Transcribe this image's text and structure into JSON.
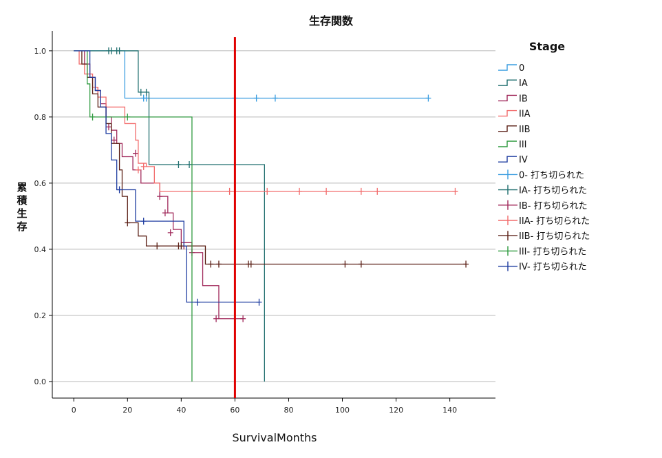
{
  "chart_data": {
    "type": "line",
    "title": "生存関数",
    "xlabel": "SurvivalMonths",
    "ylabel": "累積生存",
    "xlim": [
      -8,
      157
    ],
    "ylim": [
      -0.05,
      1.06
    ],
    "xticks": [
      0,
      20,
      40,
      60,
      80,
      100,
      120,
      140
    ],
    "yticks": [
      0.0,
      0.2,
      0.4,
      0.6,
      0.8,
      1.0
    ],
    "ytick_labels": [
      "0.0",
      "0.2",
      "0.4",
      "0.6",
      "0.8",
      "1.0"
    ],
    "grid": "horizontal",
    "legend_title": "Stage",
    "legend_position": "right",
    "reference_line": {
      "x": 60,
      "color": "#e00000"
    },
    "series": [
      {
        "name": "0",
        "censored_name": "0- 打ち切られた",
        "color": "#3a9de0",
        "steps": [
          [
            0,
            1.0
          ],
          [
            19,
            0.857
          ],
          [
            132,
            0.857
          ]
        ],
        "censored": [
          [
            26,
            0.857
          ],
          [
            27,
            0.857
          ],
          [
            60,
            0.857
          ],
          [
            68,
            0.857
          ],
          [
            75,
            0.857
          ],
          [
            132,
            0.857
          ]
        ]
      },
      {
        "name": "IA",
        "censored_name": "IA- 打ち切られた",
        "color": "#1e6e6e",
        "steps": [
          [
            0,
            1.0
          ],
          [
            24,
            0.875
          ],
          [
            28,
            0.656
          ],
          [
            71,
            0.656
          ],
          [
            71,
            0.0
          ]
        ],
        "censored": [
          [
            13,
            1.0
          ],
          [
            14,
            1.0
          ],
          [
            16,
            1.0
          ],
          [
            17,
            1.0
          ],
          [
            25,
            0.875
          ],
          [
            27,
            0.875
          ],
          [
            39,
            0.656
          ],
          [
            43,
            0.656
          ]
        ]
      },
      {
        "name": "IB",
        "censored_name": "IB- 打ち切られた",
        "color": "#a0285a",
        "steps": [
          [
            0,
            1.0
          ],
          [
            4,
            0.96
          ],
          [
            6,
            0.92
          ],
          [
            8,
            0.88
          ],
          [
            10,
            0.84
          ],
          [
            12,
            0.8
          ],
          [
            14,
            0.76
          ],
          [
            16,
            0.72
          ],
          [
            18,
            0.68
          ],
          [
            22,
            0.64
          ],
          [
            25,
            0.6
          ],
          [
            32,
            0.56
          ],
          [
            35,
            0.51
          ],
          [
            37,
            0.46
          ],
          [
            40,
            0.42
          ],
          [
            44,
            0.39
          ],
          [
            48,
            0.29
          ],
          [
            54,
            0.19
          ],
          [
            63,
            0.19
          ]
        ],
        "censored": [
          [
            9,
            0.88
          ],
          [
            13,
            0.77
          ],
          [
            15,
            0.73
          ],
          [
            23,
            0.69
          ],
          [
            32,
            0.56
          ],
          [
            34,
            0.51
          ],
          [
            36,
            0.45
          ],
          [
            41,
            0.41
          ],
          [
            44,
            0.39
          ],
          [
            53,
            0.19
          ],
          [
            63,
            0.19
          ]
        ]
      },
      {
        "name": "IIA",
        "censored_name": "IIA- 打ち切られた",
        "color": "#f26b6b",
        "steps": [
          [
            0,
            1.0
          ],
          [
            2,
            0.96
          ],
          [
            4,
            0.93
          ],
          [
            7,
            0.89
          ],
          [
            9,
            0.86
          ],
          [
            12,
            0.83
          ],
          [
            19,
            0.78
          ],
          [
            23,
            0.73
          ],
          [
            24,
            0.66
          ],
          [
            27,
            0.65
          ],
          [
            30,
            0.6
          ],
          [
            32,
            0.575
          ],
          [
            143,
            0.575
          ]
        ],
        "censored": [
          [
            24,
            0.64
          ],
          [
            26,
            0.65
          ],
          [
            58,
            0.575
          ],
          [
            72,
            0.575
          ],
          [
            84,
            0.575
          ],
          [
            94,
            0.575
          ],
          [
            107,
            0.575
          ],
          [
            113,
            0.575
          ],
          [
            142,
            0.575
          ]
        ]
      },
      {
        "name": "IIB",
        "censored_name": "IIB- 打ち切られた",
        "color": "#5a1e14",
        "steps": [
          [
            0,
            1.0
          ],
          [
            3,
            0.96
          ],
          [
            5,
            0.92
          ],
          [
            7,
            0.87
          ],
          [
            9,
            0.83
          ],
          [
            12,
            0.78
          ],
          [
            14,
            0.72
          ],
          [
            17,
            0.64
          ],
          [
            18,
            0.56
          ],
          [
            20,
            0.48
          ],
          [
            24,
            0.44
          ],
          [
            27,
            0.41
          ],
          [
            49,
            0.355
          ],
          [
            146,
            0.355
          ]
        ],
        "censored": [
          [
            20,
            0.48
          ],
          [
            31,
            0.41
          ],
          [
            39,
            0.41
          ],
          [
            40,
            0.41
          ],
          [
            51,
            0.355
          ],
          [
            54,
            0.355
          ],
          [
            65,
            0.355
          ],
          [
            66,
            0.355
          ],
          [
            101,
            0.355
          ],
          [
            107,
            0.355
          ],
          [
            146,
            0.355
          ]
        ]
      },
      {
        "name": "III",
        "censored_name": "III- 打ち切られた",
        "color": "#2e9a3e",
        "steps": [
          [
            0,
            1.0
          ],
          [
            5,
            0.9
          ],
          [
            6,
            0.8
          ],
          [
            44,
            0.8
          ],
          [
            44,
            0.0
          ]
        ],
        "censored": [
          [
            7,
            0.8
          ],
          [
            20,
            0.8
          ]
        ]
      },
      {
        "name": "IV",
        "censored_name": "IV- 打ち切られた",
        "color": "#1e3ca0",
        "steps": [
          [
            0,
            1.0
          ],
          [
            6,
            0.92
          ],
          [
            8,
            0.88
          ],
          [
            10,
            0.83
          ],
          [
            12,
            0.75
          ],
          [
            14,
            0.67
          ],
          [
            16,
            0.58
          ],
          [
            23,
            0.485
          ],
          [
            39,
            0.485
          ],
          [
            41,
            0.41
          ],
          [
            42,
            0.24
          ],
          [
            69,
            0.24
          ]
        ],
        "censored": [
          [
            17,
            0.58
          ],
          [
            26,
            0.485
          ],
          [
            46,
            0.24
          ],
          [
            69,
            0.24
          ]
        ]
      }
    ]
  }
}
